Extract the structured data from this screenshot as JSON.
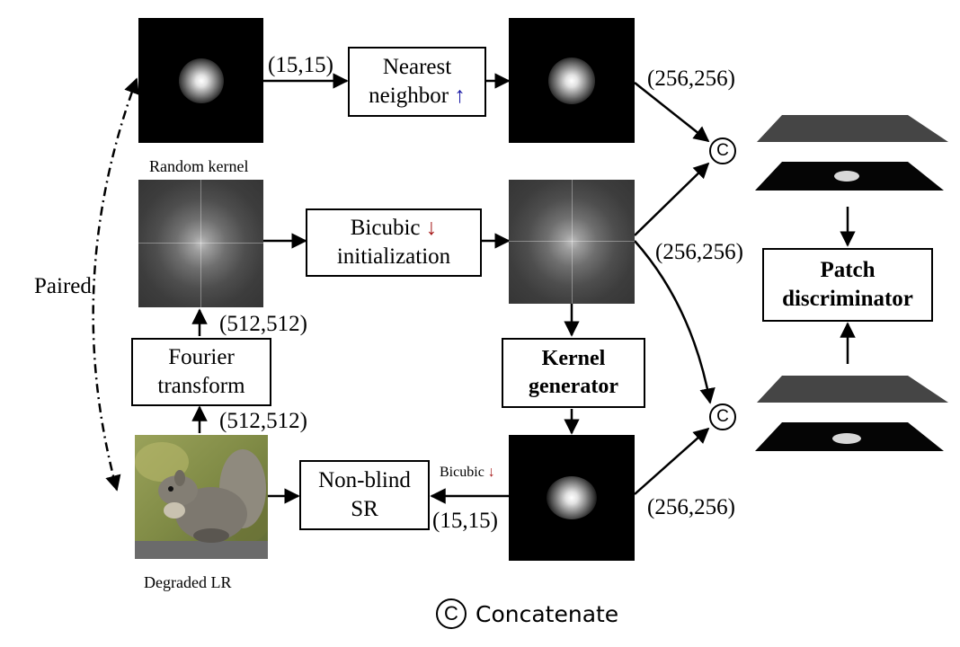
{
  "blocks": {
    "nearest_neighbor": [
      "Nearest",
      "neighbor ↑"
    ],
    "bicubic_init": [
      "Bicubic ↓",
      "initialization"
    ],
    "fourier_transform": [
      "Fourier",
      "transform"
    ],
    "kernel_generator": [
      "Kernel",
      "generator"
    ],
    "non_blind_sr": [
      "Non-blind",
      "SR"
    ],
    "patch_discriminator": [
      "Patch",
      "discriminator"
    ]
  },
  "captions": {
    "random_kernel": "Random kernel",
    "degraded_lr": "Degraded LR",
    "paired": "Paired",
    "bicubic_small": "Bicubic ↓"
  },
  "dims": {
    "d15_top": "(15,15)",
    "d256_top": "(256,256)",
    "d256_mid": "(256,256)",
    "d512_upper": "(512,512)",
    "d512_lower": "(512,512)",
    "d15_bottom": "(15,15)",
    "d256_bottom": "(256,256)"
  },
  "concat_symbol": "C",
  "legend": {
    "symbol": "C",
    "label": "Concatenate"
  },
  "colors": {
    "arrow_blue": "#1a1aa6",
    "arrow_red": "#a61a1a",
    "ink": "#000000"
  },
  "icons": [
    "concatenate-circle-icon",
    "up-arrow-icon",
    "down-arrow-icon"
  ]
}
